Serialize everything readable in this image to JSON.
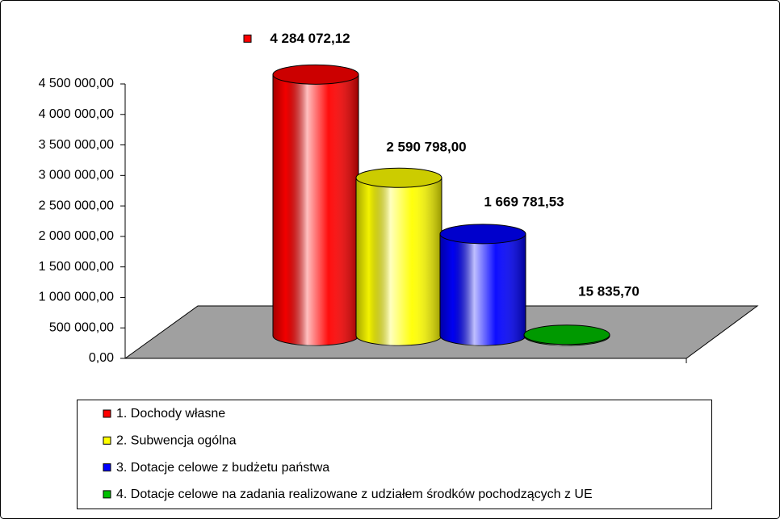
{
  "chart_data": {
    "type": "cylinder",
    "ylim": [
      0,
      4500000
    ],
    "yticks": [
      {
        "value": 0,
        "label": "0,00"
      },
      {
        "value": 500000,
        "label": "500 000,00"
      },
      {
        "value": 1000000,
        "label": "1 000 000,00"
      },
      {
        "value": 1500000,
        "label": "1 500 000,00"
      },
      {
        "value": 2000000,
        "label": "2 000 000,00"
      },
      {
        "value": 2500000,
        "label": "2 500 000,00"
      },
      {
        "value": 3000000,
        "label": "3 000 000,00"
      },
      {
        "value": 3500000,
        "label": "3 500 000,00"
      },
      {
        "value": 4000000,
        "label": "4 000 000,00"
      },
      {
        "value": 4500000,
        "label": "4 500 000,00"
      }
    ],
    "series": [
      {
        "name": "1. Dochody własne",
        "color": "#ff0000",
        "values": [
          4284072.12
        ],
        "value_labels": [
          "4 284 072,12"
        ]
      },
      {
        "name": "2. Subwencja ogólna",
        "color": "#ffff00",
        "values": [
          2590798.0
        ],
        "value_labels": [
          "2 590 798,00"
        ]
      },
      {
        "name": "3. Dotacje celowe z budżetu państwa",
        "color": "#0000ff",
        "values": [
          1669781.53
        ],
        "value_labels": [
          "1 669 781,53"
        ]
      },
      {
        "name": "4. Dotacje celowe na zadania realizowane z udziałem środków pochodzących z UE",
        "color": "#00c000",
        "values": [
          15835.7
        ],
        "value_labels": [
          "15 835,70"
        ]
      }
    ]
  }
}
